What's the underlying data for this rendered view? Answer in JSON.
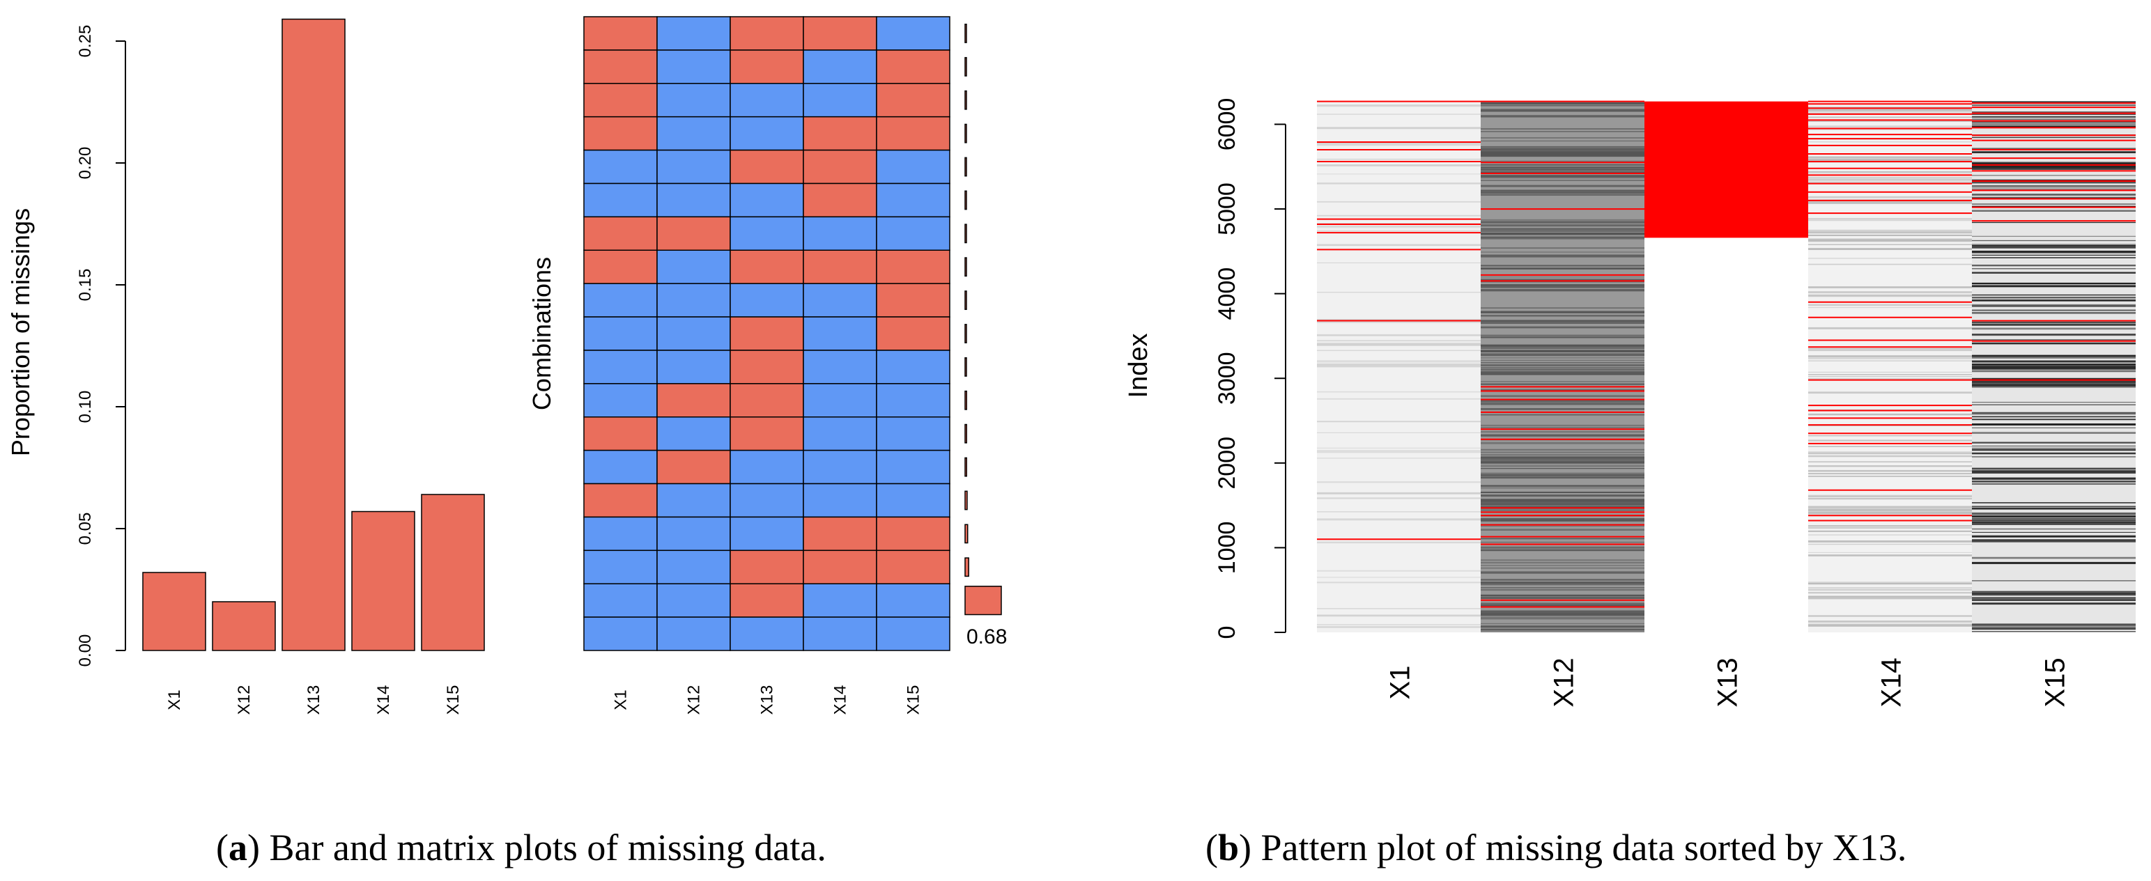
{
  "chart_data": [
    {
      "type": "bar",
      "panel": "a-bar",
      "title": "",
      "xlabel": "",
      "ylabel": "Proportion of missings",
      "categories": [
        "X1",
        "X12",
        "X13",
        "X14",
        "X15"
      ],
      "values": [
        0.032,
        0.02,
        0.259,
        0.057,
        0.064
      ],
      "ylim": [
        0,
        0.26
      ],
      "yticks": [
        0.0,
        0.05,
        0.1,
        0.15,
        0.2,
        0.25
      ],
      "ytick_labels": [
        "0.00",
        "0.05",
        "0.10",
        "0.15",
        "0.20",
        "0.25"
      ],
      "bar_color": "#EA6E5C",
      "grid": false
    },
    {
      "type": "heatmap",
      "panel": "a-matrix",
      "ylabel": "Combinations",
      "columns": [
        "X1",
        "X12",
        "X13",
        "X14",
        "X15"
      ],
      "rows_top_to_bottom": [
        [
          1,
          0,
          1,
          1,
          0
        ],
        [
          1,
          0,
          1,
          0,
          1
        ],
        [
          1,
          0,
          0,
          0,
          1
        ],
        [
          1,
          0,
          0,
          1,
          1
        ],
        [
          0,
          0,
          1,
          1,
          0
        ],
        [
          0,
          0,
          0,
          1,
          0
        ],
        [
          1,
          1,
          0,
          0,
          0
        ],
        [
          1,
          0,
          1,
          1,
          1
        ],
        [
          0,
          0,
          0,
          0,
          1
        ],
        [
          0,
          0,
          1,
          0,
          1
        ],
        [
          0,
          0,
          1,
          0,
          0
        ],
        [
          0,
          1,
          1,
          0,
          0
        ],
        [
          1,
          0,
          1,
          0,
          0
        ],
        [
          0,
          1,
          0,
          0,
          0
        ],
        [
          1,
          0,
          0,
          0,
          0
        ],
        [
          0,
          0,
          0,
          1,
          1
        ],
        [
          0,
          0,
          1,
          1,
          1
        ],
        [
          0,
          0,
          1,
          0,
          0
        ],
        [
          0,
          0,
          0,
          0,
          0
        ]
      ],
      "row_frequencies_top_to_bottom": [
        0.001,
        0.001,
        0.001,
        0.001,
        0.001,
        0.001,
        0.001,
        0.001,
        0.002,
        0.002,
        0.002,
        0.003,
        0.003,
        0.003,
        0.004,
        0.005,
        0.007,
        0.07,
        0.68
      ],
      "highlight_label": "0.68",
      "missing_color": "#EA6E5C",
      "observed_color": "#6098F5"
    },
    {
      "type": "heatmap",
      "panel": "b-pattern",
      "ylabel": "Index",
      "columns": [
        "X1",
        "X12",
        "X13",
        "X14",
        "X15"
      ],
      "ylim": [
        0,
        6300
      ],
      "yticks": [
        0,
        1000,
        2000,
        3000,
        4000,
        5000,
        6000
      ],
      "ytick_labels": [
        "0",
        "1000",
        "2000",
        "3000",
        "4000",
        "5000",
        "6000"
      ],
      "sorted_by": "X13",
      "x13_missing_from_index": 4660,
      "missing_index_samples": {
        "X1": [
          1100,
          3680,
          4520,
          4720,
          4820,
          4880,
          5560,
          5700,
          5790,
          6270
        ],
        "X12": [
          300,
          380,
          1040,
          1130,
          1270,
          1380,
          1420,
          1470,
          2280,
          2400,
          2600,
          2750,
          2850,
          2900,
          4150,
          4220,
          5000,
          5420,
          5550,
          6270
        ],
        "X14": [
          1320,
          1380,
          1680,
          2230,
          2350,
          2450,
          2530,
          2620,
          2680,
          2980,
          3370,
          3450,
          3720,
          3900,
          4950,
          5100,
          5200,
          5300,
          5400,
          5480,
          5560,
          5650,
          5750,
          5830,
          5880,
          5950,
          6050,
          6120,
          6190,
          6240,
          6270
        ],
        "X15": [
          2980,
          3440,
          3680,
          4860,
          5020,
          5120,
          5220,
          5330,
          5450,
          5520,
          5600,
          5700,
          5810,
          5870,
          5960,
          6040,
          6130,
          6200,
          6250
        ]
      },
      "missing_color": "#FF0000"
    }
  ],
  "captions": {
    "a_label": "a",
    "a_text": ") Bar and matrix plots of missing data.",
    "b_label": "b",
    "b_text": ") Pattern plot of missing data sorted by X13."
  }
}
